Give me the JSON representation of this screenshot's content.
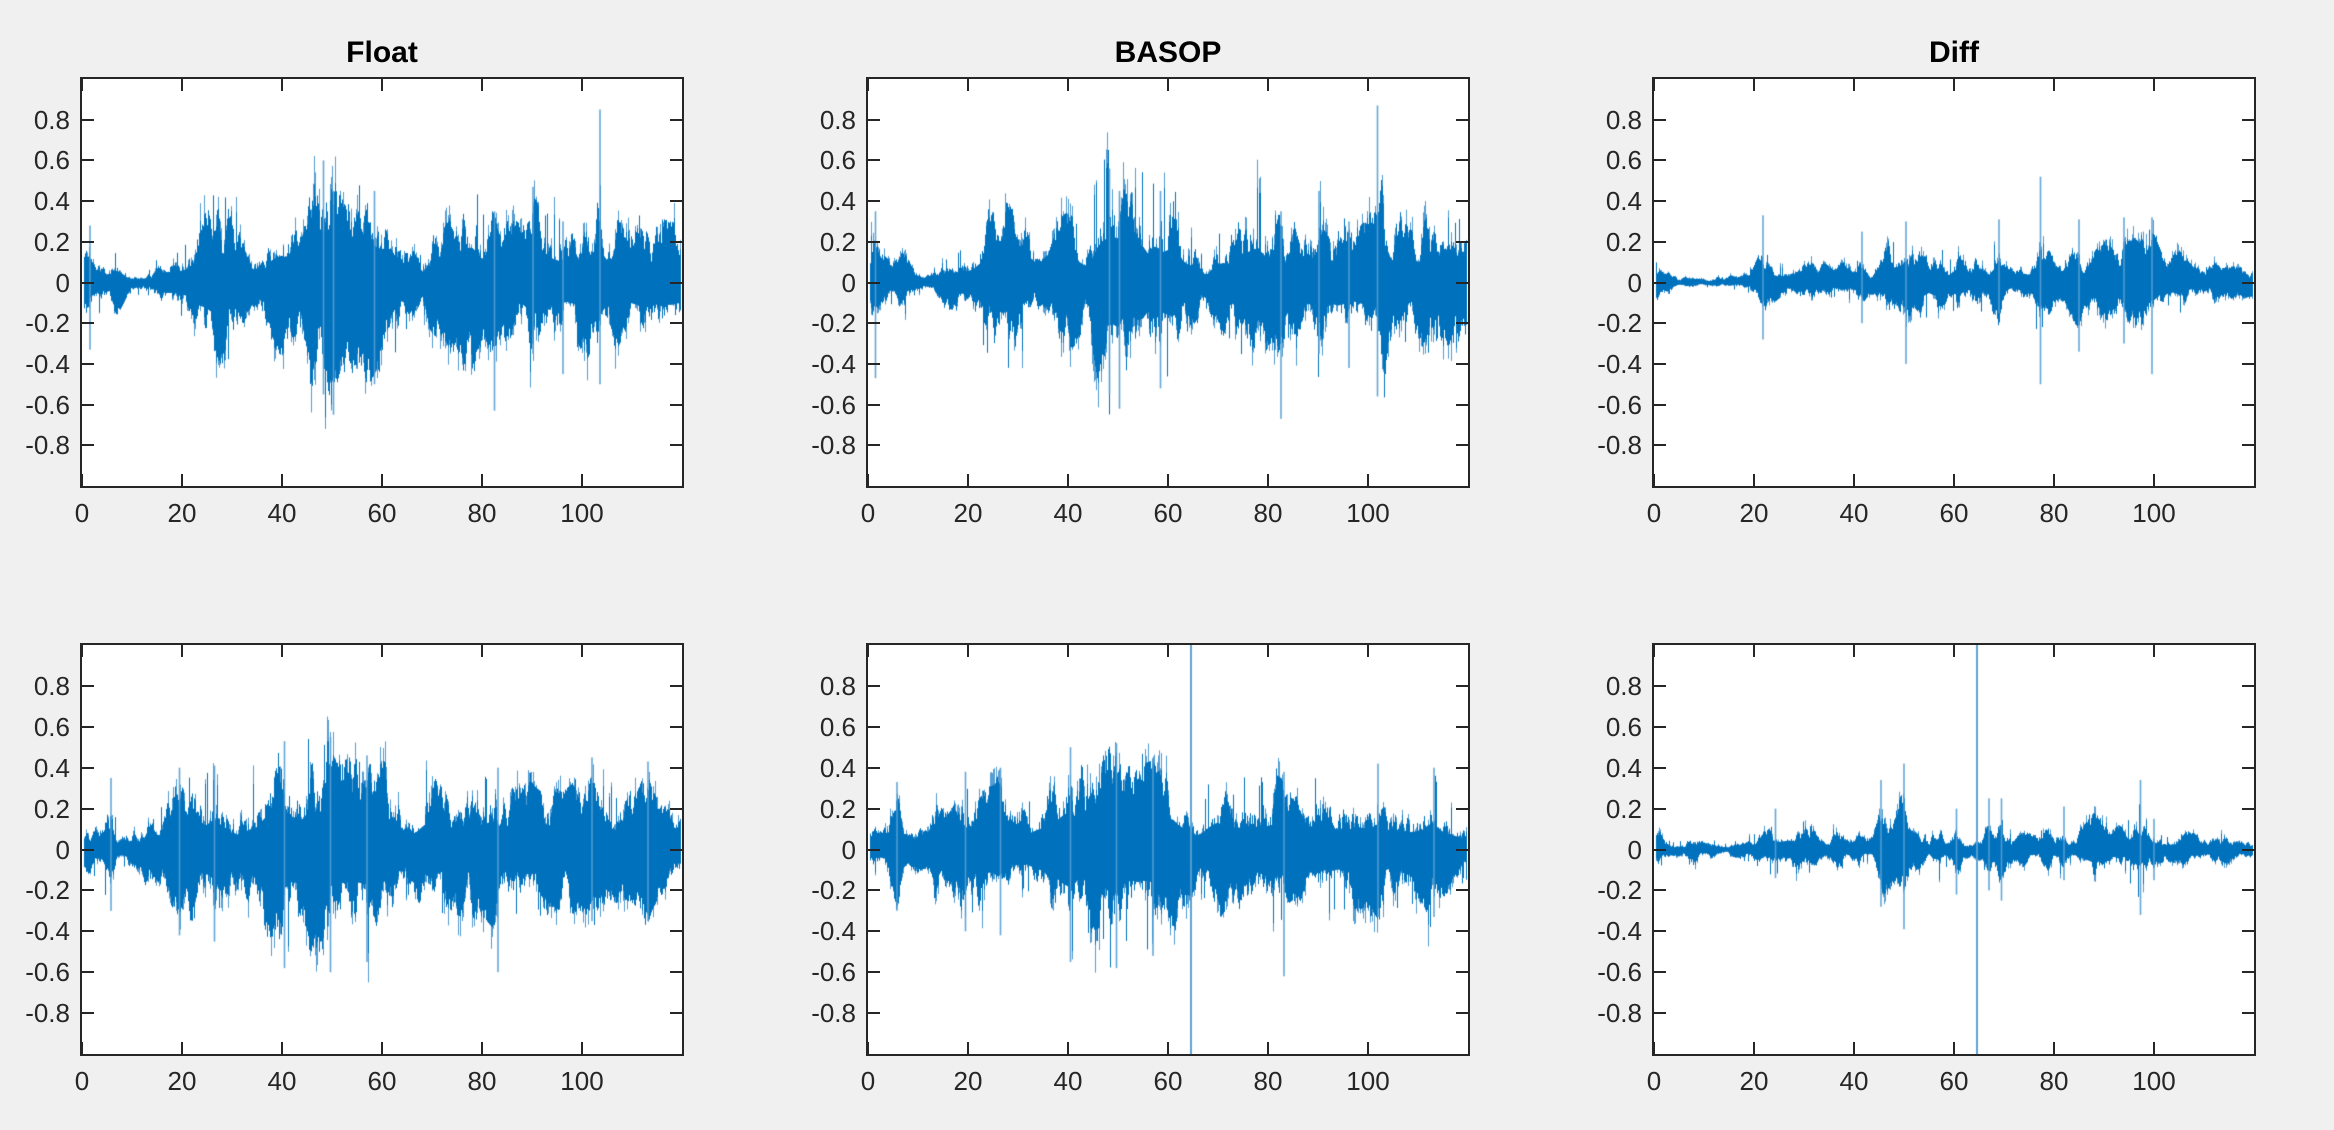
{
  "window": {
    "background": "#f0f0f0"
  },
  "style": {
    "axes_background": "#ffffff",
    "axis_color": "#262626",
    "tick_label_color": "#262626",
    "title_color": "#000000",
    "line_color": "#0072bd",
    "line_color_light": "#559dd2"
  },
  "chart_data": [
    {
      "id": "top-float",
      "type": "line",
      "title": "Float",
      "row": 0,
      "col": 0,
      "xlim": [
        0,
        120
      ],
      "ylim": [
        -1,
        1
      ],
      "xticks": [
        0,
        20,
        40,
        60,
        80,
        100
      ],
      "yticks": [
        0.8,
        0.6,
        0.4,
        0.2,
        0,
        -0.2,
        -0.4,
        -0.6,
        -0.8
      ],
      "ytick_labels": [
        "0.8",
        "0.6",
        "0.4",
        "0.2",
        "0",
        "-0.2",
        "-0.4",
        "-0.6",
        "-0.8"
      ],
      "grid": false,
      "legend": null,
      "seed": 11,
      "amp_scale": 1,
      "data_start": 0.3,
      "data_end": 119.7,
      "envelope": [
        0.14,
        0.25,
        0.18,
        0.14,
        0.12,
        0.11,
        0.12,
        0.16,
        0.12,
        0.07,
        0.05,
        0.05,
        0.05,
        0.06,
        0.07,
        0.1,
        0.13,
        0.14,
        0.14,
        0.15,
        0.16,
        0.18,
        0.24,
        0.3,
        0.32,
        0.35,
        0.4,
        0.42,
        0.4,
        0.37,
        0.35,
        0.3,
        0.25,
        0.15,
        0.12,
        0.12,
        0.14,
        0.22,
        0.3,
        0.34,
        0.36,
        0.33,
        0.3,
        0.25,
        0.22,
        0.35,
        0.5,
        0.58,
        0.6,
        0.58,
        0.62,
        0.5,
        0.4,
        0.48,
        0.52,
        0.5,
        0.4,
        0.5,
        0.48,
        0.42,
        0.45,
        0.46,
        0.44,
        0.3,
        0.25,
        0.22,
        0.18,
        0.12,
        0.12,
        0.2,
        0.25,
        0.27,
        0.26,
        0.3,
        0.36,
        0.32,
        0.42,
        0.46,
        0.47,
        0.4,
        0.32,
        0.3,
        0.36,
        0.3,
        0.26,
        0.3,
        0.32,
        0.3,
        0.28,
        0.35,
        0.45,
        0.4,
        0.33,
        0.3,
        0.32,
        0.3,
        0.28,
        0.26,
        0.28,
        0.3,
        0.33,
        0.38,
        0.33,
        0.6,
        0.4,
        0.3,
        0.32,
        0.33,
        0.28,
        0.26,
        0.28,
        0.3,
        0.34,
        0.3,
        0.28,
        0.3,
        0.32,
        0.3,
        0.3,
        0.28
      ],
      "spikes": [
        {
          "x": 1.6,
          "lo": -0.33,
          "hi": 0.28
        },
        {
          "x": 48.3,
          "lo": -0.55,
          "hi": 0.6
        },
        {
          "x": 50.3,
          "lo": -0.65,
          "hi": 0.45
        },
        {
          "x": 58.5,
          "lo": -0.5,
          "hi": 0.45
        },
        {
          "x": 82.5,
          "lo": -0.63,
          "hi": 0.35
        },
        {
          "x": 90.2,
          "lo": -0.35,
          "hi": 0.47
        },
        {
          "x": 96.2,
          "lo": -0.45,
          "hi": 0.3
        },
        {
          "x": 103.6,
          "lo": -0.5,
          "hi": 0.85
        }
      ]
    },
    {
      "id": "top-basop",
      "type": "line",
      "title": "BASOP",
      "row": 0,
      "col": 1,
      "xlim": [
        0,
        120
      ],
      "ylim": [
        -1,
        1
      ],
      "xticks": [
        0,
        20,
        40,
        60,
        80,
        100
      ],
      "yticks": [
        0.8,
        0.6,
        0.4,
        0.2,
        0,
        -0.2,
        -0.4,
        -0.6,
        -0.8
      ],
      "ytick_labels": [
        "0.8",
        "0.6",
        "0.4",
        "0.2",
        "0",
        "-0.2",
        "-0.4",
        "-0.6",
        "-0.8"
      ],
      "grid": false,
      "legend": null,
      "seed": 23,
      "amp_scale": 0.97,
      "data_start": 0.3,
      "data_end": 119.7,
      "envelope": [
        0.14,
        0.25,
        0.18,
        0.14,
        0.12,
        0.11,
        0.12,
        0.16,
        0.12,
        0.07,
        0.05,
        0.05,
        0.05,
        0.06,
        0.07,
        0.1,
        0.13,
        0.14,
        0.14,
        0.15,
        0.16,
        0.18,
        0.24,
        0.3,
        0.32,
        0.35,
        0.4,
        0.42,
        0.4,
        0.37,
        0.35,
        0.3,
        0.25,
        0.15,
        0.12,
        0.12,
        0.14,
        0.22,
        0.3,
        0.34,
        0.36,
        0.33,
        0.3,
        0.25,
        0.22,
        0.35,
        0.5,
        0.58,
        0.6,
        0.58,
        0.62,
        0.5,
        0.4,
        0.48,
        0.52,
        0.5,
        0.4,
        0.5,
        0.48,
        0.42,
        0.45,
        0.46,
        0.44,
        0.3,
        0.25,
        0.22,
        0.18,
        0.12,
        0.12,
        0.2,
        0.25,
        0.27,
        0.26,
        0.3,
        0.36,
        0.32,
        0.42,
        0.46,
        0.47,
        0.4,
        0.32,
        0.3,
        0.36,
        0.3,
        0.26,
        0.3,
        0.32,
        0.3,
        0.28,
        0.35,
        0.45,
        0.4,
        0.33,
        0.3,
        0.32,
        0.3,
        0.28,
        0.26,
        0.28,
        0.3,
        0.33,
        0.38,
        0.33,
        0.6,
        0.4,
        0.3,
        0.32,
        0.33,
        0.28,
        0.26,
        0.28,
        0.3,
        0.34,
        0.3,
        0.28,
        0.3,
        0.32,
        0.3,
        0.3,
        0.28
      ],
      "spikes": [
        {
          "x": 1.5,
          "lo": -0.47,
          "hi": 0.35
        },
        {
          "x": 48.3,
          "lo": -0.55,
          "hi": 0.56
        },
        {
          "x": 50.3,
          "lo": -0.62,
          "hi": 0.45
        },
        {
          "x": 58.5,
          "lo": -0.52,
          "hi": 0.45
        },
        {
          "x": 82.6,
          "lo": -0.67,
          "hi": 0.35
        },
        {
          "x": 90.2,
          "lo": -0.35,
          "hi": 0.45
        },
        {
          "x": 96.2,
          "lo": -0.42,
          "hi": 0.3
        },
        {
          "x": 101.9,
          "lo": -0.56,
          "hi": 0.87
        }
      ]
    },
    {
      "id": "top-diff",
      "type": "line",
      "title": "Diff",
      "row": 0,
      "col": 2,
      "xlim": [
        0,
        120
      ],
      "ylim": [
        -1,
        1
      ],
      "xticks": [
        0,
        20,
        40,
        60,
        80,
        100
      ],
      "yticks": [
        0.8,
        0.6,
        0.4,
        0.2,
        0,
        -0.2,
        -0.4,
        -0.6,
        -0.8
      ],
      "ytick_labels": [
        "0.8",
        "0.6",
        "0.4",
        "0.2",
        "0",
        "-0.2",
        "-0.4",
        "-0.6",
        "-0.8"
      ],
      "grid": false,
      "legend": null,
      "seed": 37,
      "amp_scale": 1,
      "data_start": 0.3,
      "data_end": 119.7,
      "envelope": [
        0.1,
        0.08,
        0.04,
        0.05,
        0.04,
        0.03,
        0.03,
        0.02,
        0.02,
        0.02,
        0.02,
        0.02,
        0.02,
        0.03,
        0.02,
        0.04,
        0.03,
        0.03,
        0.04,
        0.05,
        0.08,
        0.14,
        0.16,
        0.13,
        0.1,
        0.08,
        0.06,
        0.05,
        0.05,
        0.06,
        0.09,
        0.1,
        0.1,
        0.09,
        0.1,
        0.08,
        0.06,
        0.09,
        0.1,
        0.08,
        0.06,
        0.12,
        0.1,
        0.06,
        0.06,
        0.08,
        0.15,
        0.22,
        0.2,
        0.22,
        0.25,
        0.18,
        0.12,
        0.15,
        0.18,
        0.14,
        0.17,
        0.19,
        0.14,
        0.1,
        0.15,
        0.18,
        0.12,
        0.1,
        0.16,
        0.17,
        0.12,
        0.1,
        0.18,
        0.22,
        0.1,
        0.08,
        0.08,
        0.1,
        0.12,
        0.1,
        0.15,
        0.3,
        0.18,
        0.16,
        0.12,
        0.08,
        0.1,
        0.14,
        0.2,
        0.22,
        0.12,
        0.13,
        0.15,
        0.18,
        0.2,
        0.22,
        0.2,
        0.22,
        0.25,
        0.2,
        0.22,
        0.2,
        0.22,
        0.26,
        0.24,
        0.18,
        0.12,
        0.1,
        0.14,
        0.16,
        0.13,
        0.1,
        0.08,
        0.07,
        0.07,
        0.08,
        0.1,
        0.08,
        0.07,
        0.08,
        0.08,
        0.07,
        0.08,
        0.07
      ],
      "spikes": [
        {
          "x": 21.8,
          "lo": -0.28,
          "hi": 0.33
        },
        {
          "x": 41.6,
          "lo": -0.2,
          "hi": 0.25
        },
        {
          "x": 50.4,
          "lo": -0.4,
          "hi": 0.3
        },
        {
          "x": 69.0,
          "lo": -0.15,
          "hi": 0.31
        },
        {
          "x": 77.3,
          "lo": -0.5,
          "hi": 0.52
        },
        {
          "x": 85.0,
          "lo": -0.34,
          "hi": 0.31
        },
        {
          "x": 94.0,
          "lo": -0.3,
          "hi": 0.32
        },
        {
          "x": 99.6,
          "lo": -0.45,
          "hi": 0.32
        }
      ]
    },
    {
      "id": "bottom-float",
      "type": "line",
      "title": "",
      "row": 1,
      "col": 0,
      "xlim": [
        0,
        120
      ],
      "ylim": [
        -1,
        1
      ],
      "xticks": [
        0,
        20,
        40,
        60,
        80,
        100
      ],
      "yticks": [
        0.8,
        0.6,
        0.4,
        0.2,
        0,
        -0.2,
        -0.4,
        -0.6,
        -0.8
      ],
      "ytick_labels": [
        "0.8",
        "0.6",
        "0.4",
        "0.2",
        "0",
        "-0.2",
        "-0.4",
        "-0.6",
        "-0.8"
      ],
      "grid": false,
      "legend": null,
      "seed": 53,
      "amp_scale": 1,
      "data_start": 0.3,
      "data_end": 119.7,
      "envelope": [
        0.1,
        0.12,
        0.11,
        0.12,
        0.13,
        0.25,
        0.3,
        0.1,
        0.07,
        0.1,
        0.12,
        0.1,
        0.1,
        0.22,
        0.28,
        0.2,
        0.18,
        0.22,
        0.28,
        0.32,
        0.3,
        0.33,
        0.36,
        0.3,
        0.32,
        0.33,
        0.38,
        0.3,
        0.25,
        0.22,
        0.22,
        0.2,
        0.22,
        0.25,
        0.28,
        0.3,
        0.38,
        0.45,
        0.42,
        0.48,
        0.52,
        0.5,
        0.42,
        0.44,
        0.4,
        0.48,
        0.5,
        0.48,
        0.52,
        0.55,
        0.48,
        0.42,
        0.45,
        0.44,
        0.46,
        0.44,
        0.45,
        0.46,
        0.4,
        0.42,
        0.44,
        0.42,
        0.35,
        0.3,
        0.28,
        0.22,
        0.2,
        0.24,
        0.3,
        0.35,
        0.38,
        0.33,
        0.3,
        0.28,
        0.3,
        0.32,
        0.33,
        0.3,
        0.33,
        0.35,
        0.33,
        0.35,
        0.38,
        0.36,
        0.28,
        0.26,
        0.28,
        0.3,
        0.32,
        0.33,
        0.33,
        0.3,
        0.28,
        0.3,
        0.28,
        0.3,
        0.28,
        0.3,
        0.32,
        0.3,
        0.3,
        0.32,
        0.36,
        0.3,
        0.28,
        0.26,
        0.28,
        0.26,
        0.24,
        0.25,
        0.26,
        0.28,
        0.34,
        0.38,
        0.3,
        0.25,
        0.22,
        0.2,
        0.18,
        0.15
      ],
      "spikes": [
        {
          "x": 5.8,
          "lo": -0.3,
          "hi": 0.35
        },
        {
          "x": 19.5,
          "lo": -0.42,
          "hi": 0.4
        },
        {
          "x": 26.5,
          "lo": -0.45,
          "hi": 0.41
        },
        {
          "x": 40.5,
          "lo": -0.58,
          "hi": 0.53
        },
        {
          "x": 49.7,
          "lo": -0.6,
          "hi": 0.55
        },
        {
          "x": 57.0,
          "lo": -0.55,
          "hi": 0.46
        },
        {
          "x": 83.2,
          "lo": -0.6,
          "hi": 0.4
        },
        {
          "x": 102.0,
          "lo": -0.35,
          "hi": 0.45
        },
        {
          "x": 113.2,
          "lo": -0.35,
          "hi": 0.43
        }
      ]
    },
    {
      "id": "bottom-basop",
      "type": "line",
      "title": "",
      "row": 1,
      "col": 1,
      "xlim": [
        0,
        120
      ],
      "ylim": [
        -1,
        1
      ],
      "xticks": [
        0,
        20,
        40,
        60,
        80,
        100
      ],
      "yticks": [
        0.8,
        0.6,
        0.4,
        0.2,
        0,
        -0.2,
        -0.4,
        -0.6,
        -0.8
      ],
      "ytick_labels": [
        "0.8",
        "0.6",
        "0.4",
        "0.2",
        "0",
        "-0.2",
        "-0.4",
        "-0.6",
        "-0.8"
      ],
      "grid": false,
      "legend": null,
      "seed": 71,
      "amp_scale": 0.95,
      "data_start": 0.3,
      "data_end": 119.7,
      "envelope": [
        0.1,
        0.12,
        0.11,
        0.12,
        0.13,
        0.25,
        0.3,
        0.1,
        0.07,
        0.1,
        0.12,
        0.1,
        0.1,
        0.22,
        0.28,
        0.2,
        0.18,
        0.22,
        0.28,
        0.32,
        0.3,
        0.33,
        0.36,
        0.3,
        0.32,
        0.33,
        0.38,
        0.3,
        0.25,
        0.22,
        0.22,
        0.2,
        0.22,
        0.25,
        0.28,
        0.3,
        0.38,
        0.45,
        0.42,
        0.48,
        0.52,
        0.5,
        0.42,
        0.44,
        0.4,
        0.48,
        0.5,
        0.48,
        0.52,
        0.55,
        0.48,
        0.42,
        0.45,
        0.44,
        0.46,
        0.44,
        0.45,
        0.46,
        0.4,
        0.42,
        0.44,
        0.42,
        0.35,
        0.3,
        0.28,
        0.22,
        0.2,
        0.24,
        0.3,
        0.35,
        0.38,
        0.33,
        0.3,
        0.28,
        0.3,
        0.32,
        0.33,
        0.3,
        0.33,
        0.35,
        0.33,
        0.35,
        0.38,
        0.36,
        0.28,
        0.26,
        0.28,
        0.3,
        0.32,
        0.33,
        0.33,
        0.3,
        0.28,
        0.3,
        0.28,
        0.3,
        0.28,
        0.3,
        0.32,
        0.3,
        0.3,
        0.32,
        0.36,
        0.3,
        0.28,
        0.26,
        0.28,
        0.26,
        0.24,
        0.25,
        0.26,
        0.28,
        0.34,
        0.38,
        0.3,
        0.25,
        0.22,
        0.2,
        0.18,
        0.15
      ],
      "spikes": [
        {
          "x": 5.8,
          "lo": -0.3,
          "hi": 0.33
        },
        {
          "x": 19.5,
          "lo": -0.4,
          "hi": 0.38
        },
        {
          "x": 26.5,
          "lo": -0.42,
          "hi": 0.4
        },
        {
          "x": 40.5,
          "lo": -0.55,
          "hi": 0.5
        },
        {
          "x": 49.7,
          "lo": -0.58,
          "hi": 0.52
        },
        {
          "x": 57.0,
          "lo": -0.52,
          "hi": 0.44
        },
        {
          "x": 64.6,
          "lo": -1.05,
          "hi": 1.05,
          "full": true
        },
        {
          "x": 83.2,
          "lo": -0.62,
          "hi": 0.38
        },
        {
          "x": 102.0,
          "lo": -0.33,
          "hi": 0.42
        },
        {
          "x": 113.2,
          "lo": -0.33,
          "hi": 0.4
        }
      ]
    },
    {
      "id": "bottom-diff",
      "type": "line",
      "title": "",
      "row": 1,
      "col": 2,
      "xlim": [
        0,
        120
      ],
      "ylim": [
        -1,
        1
      ],
      "xticks": [
        0,
        20,
        40,
        60,
        80,
        100
      ],
      "yticks": [
        0.8,
        0.6,
        0.4,
        0.2,
        0,
        -0.2,
        -0.4,
        -0.6,
        -0.8
      ],
      "ytick_labels": [
        "0.8",
        "0.6",
        "0.4",
        "0.2",
        "0",
        "-0.2",
        "-0.4",
        "-0.6",
        "-0.8"
      ],
      "grid": false,
      "legend": null,
      "seed": 89,
      "amp_scale": 1,
      "data_start": 0.3,
      "data_end": 119.7,
      "envelope": [
        0.08,
        0.09,
        0.07,
        0.04,
        0.03,
        0.04,
        0.03,
        0.07,
        0.08,
        0.05,
        0.05,
        0.05,
        0.04,
        0.04,
        0.03,
        0.03,
        0.04,
        0.04,
        0.05,
        0.06,
        0.07,
        0.08,
        0.09,
        0.1,
        0.12,
        0.1,
        0.11,
        0.12,
        0.11,
        0.12,
        0.12,
        0.11,
        0.1,
        0.06,
        0.05,
        0.06,
        0.09,
        0.1,
        0.08,
        0.05,
        0.05,
        0.08,
        0.06,
        0.05,
        0.08,
        0.18,
        0.22,
        0.2,
        0.16,
        0.25,
        0.28,
        0.12,
        0.08,
        0.12,
        0.08,
        0.06,
        0.12,
        0.14,
        0.08,
        0.08,
        0.14,
        0.14,
        0.05,
        0.04,
        0.04,
        0.05,
        0.08,
        0.16,
        0.08,
        0.16,
        0.12,
        0.08,
        0.06,
        0.07,
        0.09,
        0.08,
        0.07,
        0.06,
        0.12,
        0.13,
        0.08,
        0.1,
        0.13,
        0.06,
        0.07,
        0.1,
        0.12,
        0.15,
        0.18,
        0.16,
        0.14,
        0.1,
        0.1,
        0.12,
        0.1,
        0.13,
        0.18,
        0.22,
        0.16,
        0.12,
        0.1,
        0.07,
        0.06,
        0.06,
        0.07,
        0.06,
        0.08,
        0.09,
        0.08,
        0.07,
        0.06,
        0.07,
        0.08,
        0.07,
        0.08,
        0.08,
        0.06,
        0.06,
        0.06,
        0.05
      ],
      "spikes": [
        {
          "x": 24.3,
          "lo": -0.14,
          "hi": 0.2
        },
        {
          "x": 45.4,
          "lo": -0.28,
          "hi": 0.34
        },
        {
          "x": 50.0,
          "lo": -0.39,
          "hi": 0.42
        },
        {
          "x": 60.5,
          "lo": -0.22,
          "hi": 0.2
        },
        {
          "x": 64.6,
          "lo": -1.05,
          "hi": 1.05,
          "full": true
        },
        {
          "x": 67.0,
          "lo": -0.2,
          "hi": 0.25
        },
        {
          "x": 69.5,
          "lo": -0.25,
          "hi": 0.25
        },
        {
          "x": 82.0,
          "lo": -0.15,
          "hi": 0.21
        },
        {
          "x": 97.3,
          "lo": -0.32,
          "hi": 0.34
        },
        {
          "x": 100.0,
          "lo": -0.15,
          "hi": 0.15
        }
      ]
    }
  ]
}
